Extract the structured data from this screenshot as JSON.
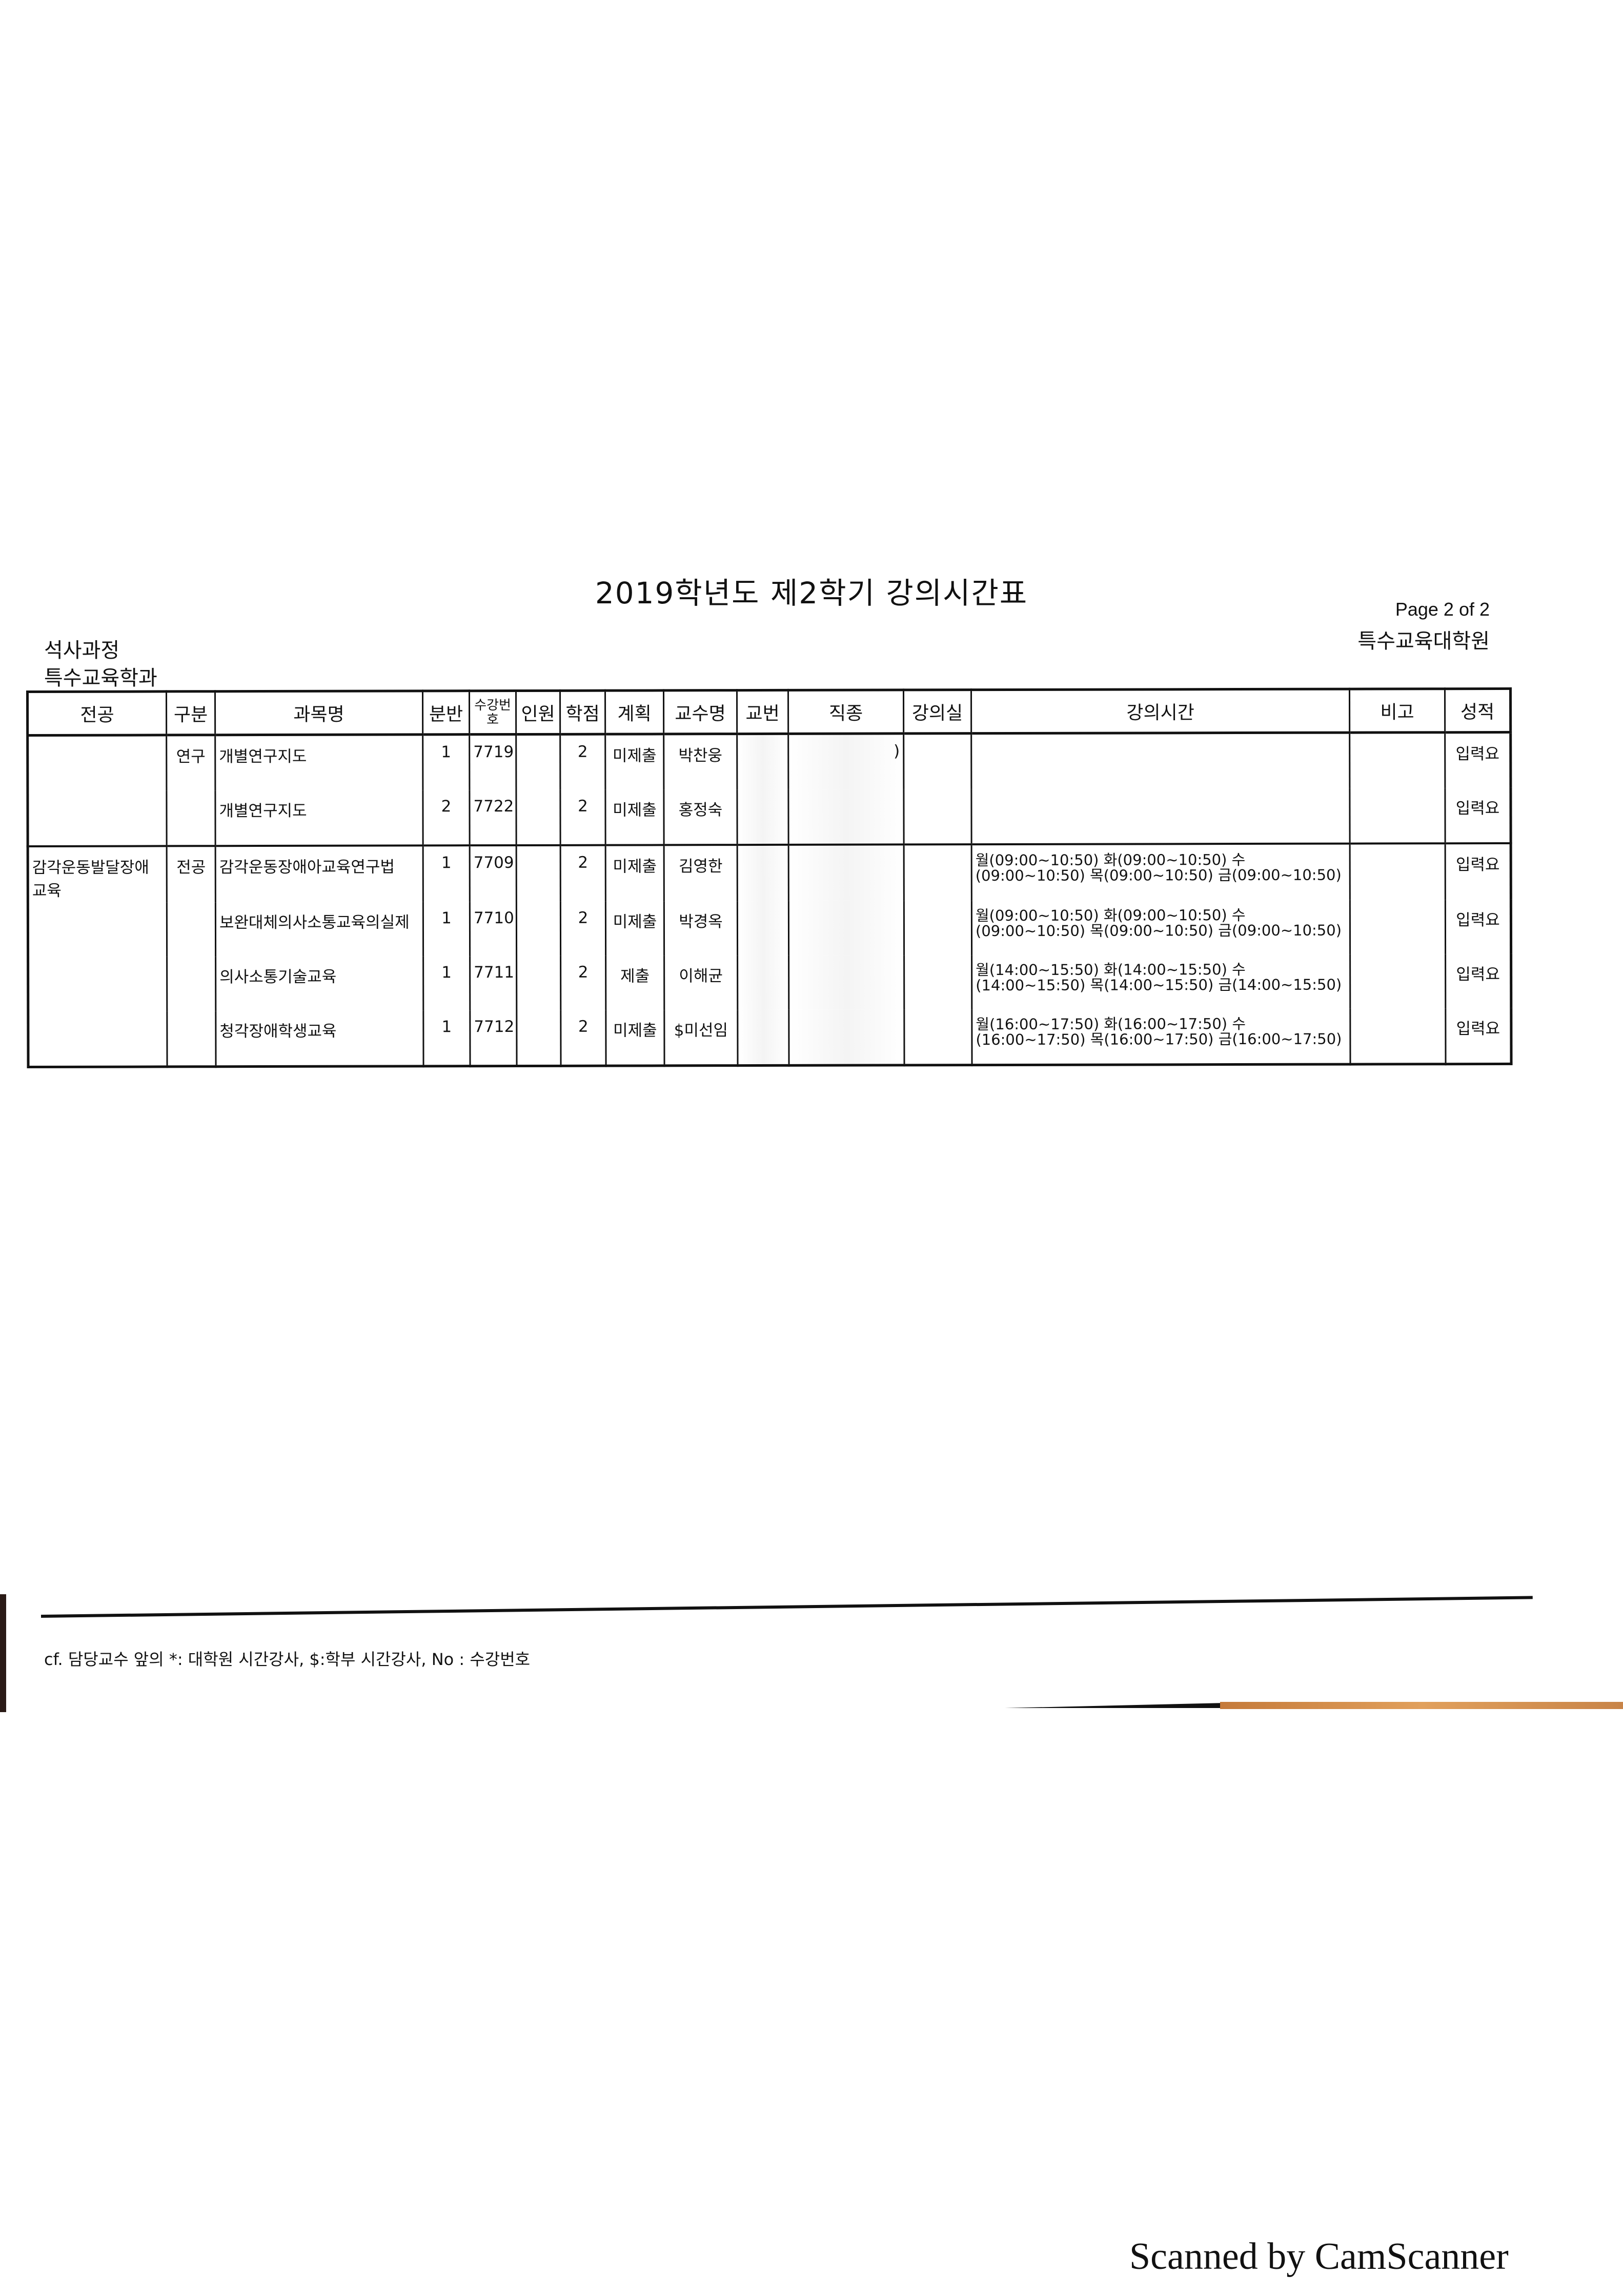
{
  "document": {
    "title": "2019학년도 제2학기 강의시간표",
    "page_indicator": "Page 2 of 2",
    "school": "특수교육대학원",
    "course_level": "석사과정",
    "department": "특수교육학과"
  },
  "table": {
    "headers": [
      "전공",
      "구분",
      "과목명",
      "분반",
      "수강번호",
      "인원",
      "학점",
      "계획",
      "교수명",
      "교번",
      "직종",
      "강의실",
      "강의시간",
      "비고",
      "성적"
    ],
    "rows": [
      {
        "major": "",
        "type": "연구",
        "subject": "개별연구지도",
        "section": "1",
        "course_no": "7719",
        "enrolled": "",
        "credit": "2",
        "plan": "미제출",
        "professor": "박찬웅",
        "prof_no": "",
        "job": ")",
        "room": "",
        "time": "",
        "note": "",
        "grade": "입력요"
      },
      {
        "major": "",
        "type": "",
        "subject": "개별연구지도",
        "section": "2",
        "course_no": "7722",
        "enrolled": "",
        "credit": "2",
        "plan": "미제출",
        "professor": "홍정숙",
        "prof_no": "",
        "job": "",
        "room": "",
        "time": "",
        "note": "",
        "grade": "입력요"
      },
      {
        "major": "감각운동발달장애교육",
        "type": "전공",
        "subject": "감각운동장애아교육연구법",
        "section": "1",
        "course_no": "7709",
        "enrolled": "",
        "credit": "2",
        "plan": "미제출",
        "professor": "김영한",
        "prof_no": "",
        "job": "",
        "room": "",
        "time": "월(09:00~10:50) 화(09:00~10:50) 수(09:00~10:50) 목(09:00~10:50) 금(09:00~10:50)",
        "note": "",
        "grade": "입력요"
      },
      {
        "major": "",
        "type": "",
        "subject": "보완대체의사소통교육의실제",
        "section": "1",
        "course_no": "7710",
        "enrolled": "",
        "credit": "2",
        "plan": "미제출",
        "professor": "박경옥",
        "prof_no": "",
        "job": "",
        "room": "",
        "time": "월(09:00~10:50) 화(09:00~10:50) 수(09:00~10:50) 목(09:00~10:50) 금(09:00~10:50)",
        "note": "",
        "grade": "입력요"
      },
      {
        "major": "",
        "type": "",
        "subject": "의사소통기술교육",
        "section": "1",
        "course_no": "7711",
        "enrolled": "",
        "credit": "2",
        "plan": "제출",
        "professor": "이해균",
        "prof_no": "",
        "job": "",
        "room": "",
        "time": "월(14:00~15:50) 화(14:00~15:50) 수(14:00~15:50) 목(14:00~15:50) 금(14:00~15:50)",
        "note": "",
        "grade": "입력요"
      },
      {
        "major": "",
        "type": "",
        "subject": "청각장애학생교육",
        "section": "1",
        "course_no": "7712",
        "enrolled": "",
        "credit": "2",
        "plan": "미제출",
        "professor": "$미선임",
        "prof_no": "",
        "job": "",
        "room": "",
        "time": "월(16:00~17:50) 화(16:00~17:50) 수(16:00~17:50) 목(16:00~17:50) 금(16:00~17:50)",
        "note": "",
        "grade": "입력요"
      }
    ]
  },
  "footer": {
    "note": "cf. 담당교수 앞의 *: 대학원 시간강사, $:학부 시간강사, No : 수강번호"
  },
  "watermark": "Scanned by CamScanner"
}
